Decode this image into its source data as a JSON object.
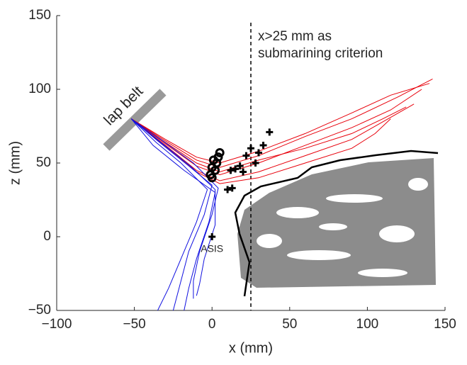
{
  "chart_data": {
    "type": "line",
    "x_label": "x (mm)",
    "y_label": "z (mm)",
    "xlim": [
      -100,
      150
    ],
    "xticks": [
      {
        "value": -100,
        "label": "−100"
      },
      {
        "value": -50,
        "label": "−50"
      },
      0,
      50,
      100,
      150
    ],
    "ylim": [
      -50,
      150
    ],
    "yticks": [
      {
        "value": -50,
        "label": "−50"
      },
      0,
      50,
      100,
      150
    ],
    "vline": 25,
    "vline_label": [
      "x>25 mm as",
      "submarining criterion"
    ],
    "belt_label": "lap belt",
    "point_label": {
      "label": "ASIS",
      "x": 0,
      "y": 0
    },
    "series": [
      {
        "marker": "line",
        "color": "#e8000b",
        "x": [
          -52,
          -30,
          -10,
          5,
          30,
          60,
          90,
          120,
          142
        ],
        "values": [
          80,
          65,
          52,
          47,
          55,
          68,
          80,
          95,
          107
        ]
      },
      {
        "marker": "line",
        "color": "#e8000b",
        "x": [
          -52,
          -30,
          -10,
          5,
          30,
          60,
          90,
          115,
          135
        ],
        "values": [
          80,
          63,
          48,
          42,
          50,
          62,
          74,
          86,
          100
        ]
      },
      {
        "marker": "line",
        "color": "#e8000b",
        "x": [
          -52,
          -30,
          -10,
          5,
          30,
          60,
          90,
          110,
          130
        ],
        "values": [
          80,
          62,
          45,
          38,
          44,
          55,
          66,
          78,
          90
        ]
      },
      {
        "marker": "line",
        "color": "#e8000b",
        "x": [
          -52,
          -30,
          -10,
          5,
          30,
          60,
          90,
          110,
          125
        ],
        "values": [
          80,
          64,
          50,
          44,
          52,
          60,
          70,
          80,
          88
        ]
      },
      {
        "marker": "line",
        "color": "#e8000b",
        "x": [
          -52,
          -30,
          -10,
          5,
          30,
          60,
          90,
          115,
          140
        ],
        "values": [
          80,
          66,
          54,
          50,
          58,
          70,
          84,
          96,
          104
        ]
      },
      {
        "marker": "line",
        "color": "#e8000b",
        "x": [
          -52,
          -30,
          -10,
          5,
          30,
          60,
          90,
          105,
          115
        ],
        "values": [
          80,
          61,
          44,
          36,
          40,
          50,
          60,
          70,
          80
        ]
      },
      {
        "marker": "line",
        "color": "#1010e0",
        "x": [
          -52,
          -35,
          -15,
          0,
          -5,
          -15,
          -20,
          -25
        ],
        "values": [
          80,
          65,
          48,
          35,
          15,
          -10,
          -30,
          -50
        ]
      },
      {
        "marker": "line",
        "color": "#1010e0",
        "x": [
          -52,
          -38,
          -18,
          2,
          -2,
          -10,
          -15,
          -18
        ],
        "values": [
          80,
          62,
          45,
          30,
          10,
          -15,
          -35,
          -50
        ]
      },
      {
        "marker": "line",
        "color": "#1010e0",
        "x": [
          -52,
          -33,
          -12,
          4,
          0,
          -8,
          -12,
          -12
        ],
        "values": [
          80,
          66,
          50,
          33,
          15,
          -10,
          -30,
          -42
        ]
      },
      {
        "marker": "line",
        "color": "#1010e0",
        "x": [
          -52,
          -36,
          -20,
          -3,
          -10,
          -20,
          -28,
          -35
        ],
        "values": [
          80,
          64,
          50,
          32,
          10,
          -15,
          -35,
          -50
        ]
      },
      {
        "marker": "line",
        "color": "#1010e0",
        "x": [
          -52,
          -34,
          -14,
          2,
          2,
          -5,
          -8,
          -10
        ],
        "values": [
          80,
          65,
          48,
          32,
          8,
          -15,
          -32,
          -40
        ]
      },
      {
        "marker": "circle",
        "color": "#000000",
        "x": [
          0,
          2,
          3,
          4,
          5,
          -1,
          0,
          1
        ],
        "values": [
          40,
          45,
          50,
          54,
          57,
          42,
          47,
          52
        ]
      },
      {
        "marker": "plus",
        "color": "#000000",
        "x": [
          10,
          12,
          15,
          20,
          25,
          28,
          30,
          33,
          37,
          18,
          22,
          13
        ],
        "values": [
          32,
          45,
          46,
          44,
          60,
          50,
          57,
          62,
          71,
          48,
          55,
          33
        ]
      }
    ]
  }
}
